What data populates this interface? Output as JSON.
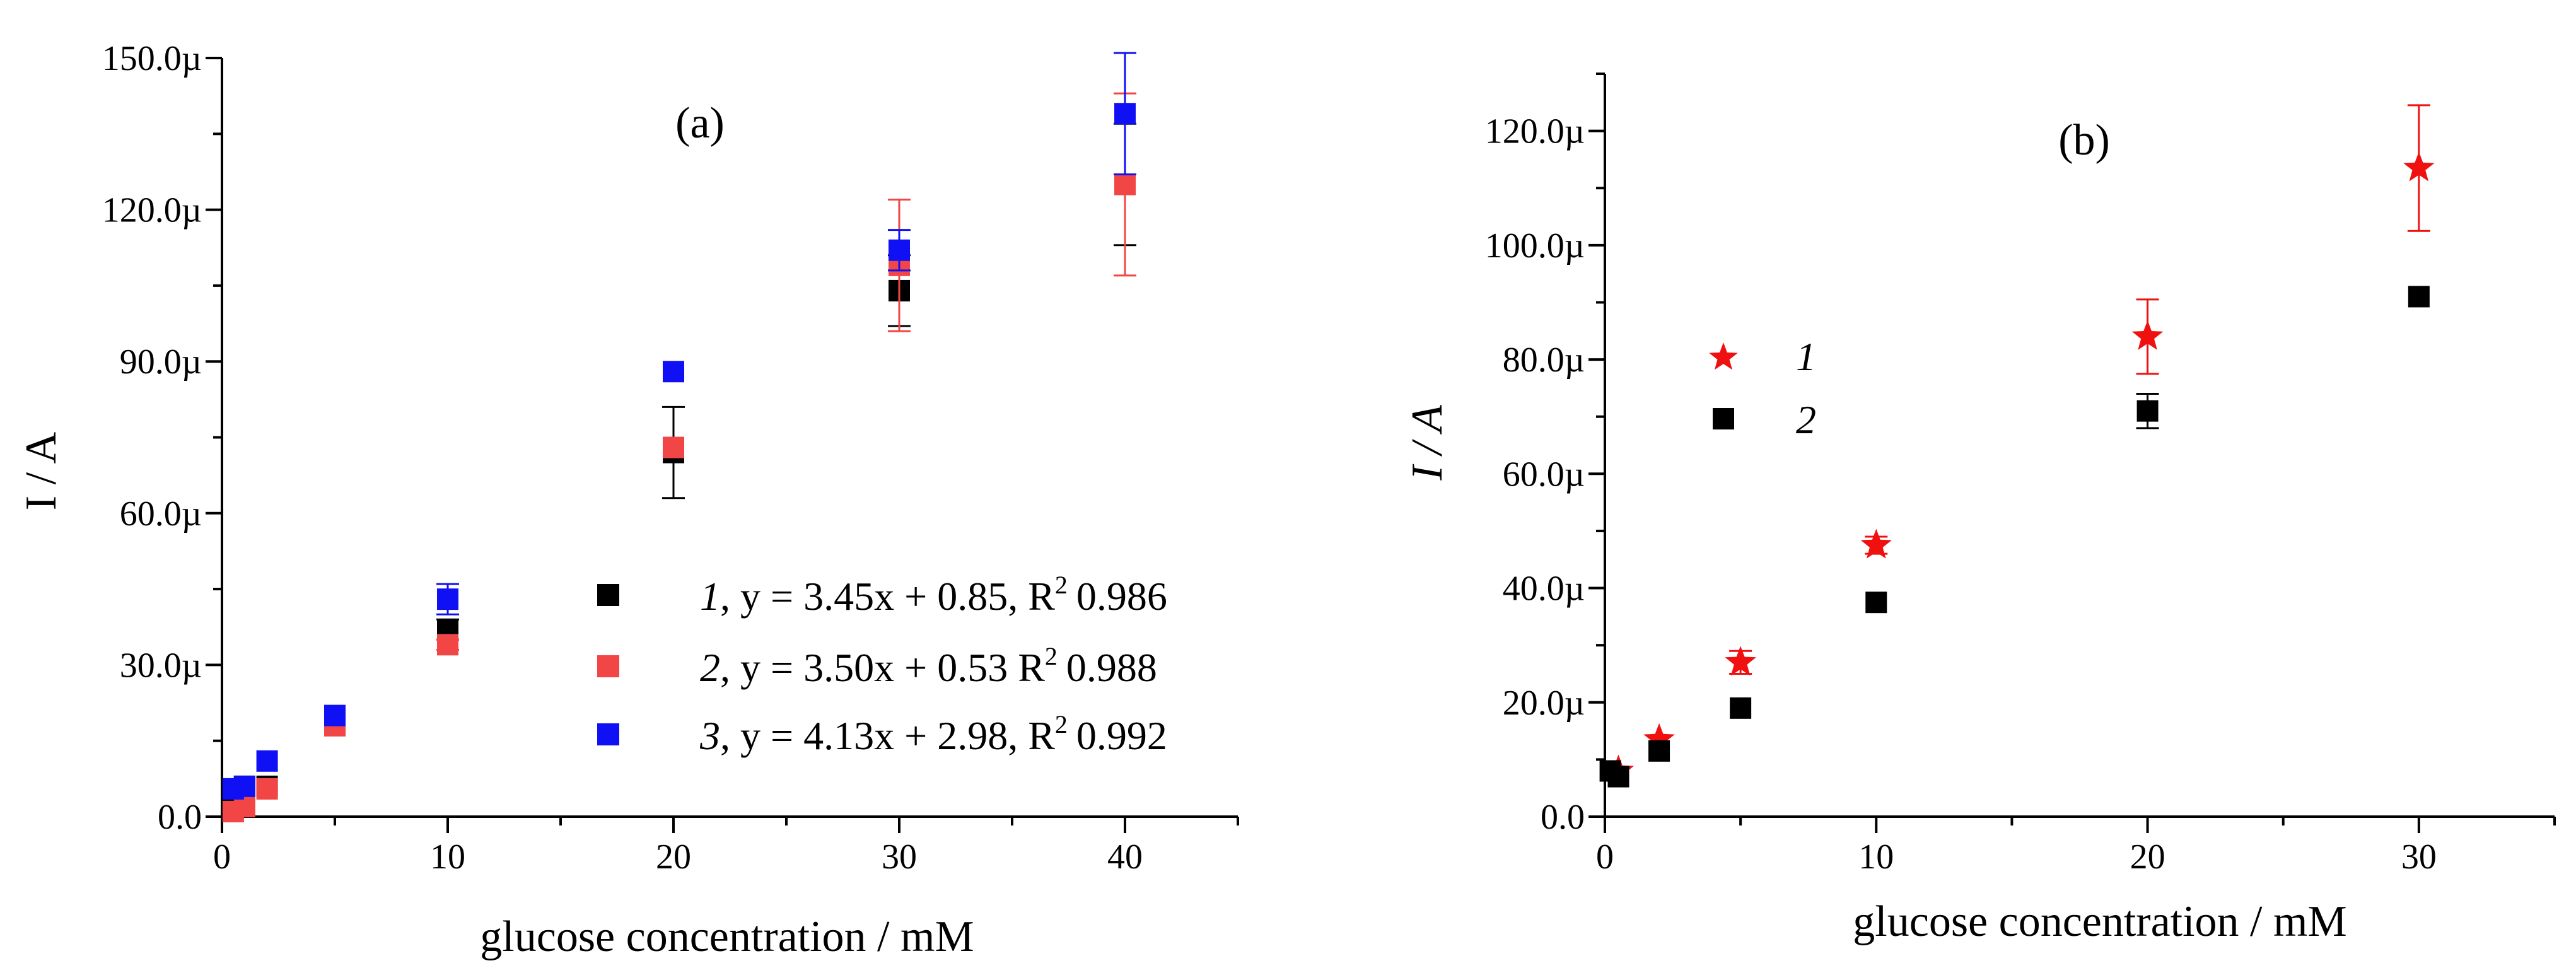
{
  "chart_data": [
    {
      "type": "scatter",
      "panel_label": "(a)",
      "xlabel": "glucose concentration / mM",
      "ylabel": "I / A",
      "xlim": [
        0,
        45
      ],
      "ylim": [
        0,
        150
      ],
      "x_major_ticks": [
        0,
        10,
        20,
        30,
        40
      ],
      "x_tick_labels": [
        "0",
        "10",
        "20",
        "30",
        "40"
      ],
      "y_major_ticks": [
        0,
        30,
        60,
        90,
        120,
        150
      ],
      "y_tick_labels": [
        "0.0",
        "30.0µ",
        "60.0µ",
        "90.0µ",
        "120.0µ",
        "150.0µ"
      ],
      "legend_position": "center-right",
      "series": [
        {
          "name": "1",
          "legend_label": ", y = 3.45x + 0.85, R",
          "legend_r2": "0.986",
          "color": "#000000",
          "marker": "square",
          "x": [
            0.5,
            1,
            2,
            5,
            10,
            20,
            30,
            40
          ],
          "y": [
            5,
            6,
            6,
            18,
            37,
            72,
            104,
            125
          ],
          "yerr": [
            0,
            0,
            0,
            0,
            2,
            9,
            7,
            12
          ]
        },
        {
          "name": "2",
          "legend_label": ", y = 3.50x + 0.53 R",
          "legend_r2": "0.988",
          "color": "#f24545",
          "marker": "square",
          "x": [
            0.5,
            1,
            2,
            5,
            10,
            20,
            30,
            40
          ],
          "y": [
            1,
            2,
            5.5,
            18,
            34,
            73,
            109,
            125
          ],
          "yerr": [
            0,
            0,
            0,
            0,
            1,
            0,
            13,
            18
          ]
        },
        {
          "name": "3",
          "legend_label": ", y = 4.13x + 2.98, R",
          "legend_r2": "0.992",
          "color": "#1010f5",
          "marker": "square",
          "x": [
            0.5,
            1,
            2,
            5,
            10,
            20,
            30,
            40
          ],
          "y": [
            5.5,
            6,
            11,
            20,
            43,
            88,
            112,
            139
          ],
          "yerr": [
            0,
            0,
            0,
            0,
            3,
            0,
            4,
            12
          ]
        }
      ]
    },
    {
      "type": "scatter",
      "panel_label": "(b)",
      "xlabel": "glucose concentration / mM",
      "ylabel": "I / A",
      "xlim": [
        0,
        35
      ],
      "ylim": [
        0,
        130
      ],
      "x_major_ticks": [
        0,
        10,
        20,
        30
      ],
      "x_tick_labels": [
        "0",
        "10",
        "20",
        "30"
      ],
      "y_major_ticks": [
        0,
        20,
        40,
        60,
        80,
        100,
        120
      ],
      "y_tick_labels": [
        "0.0",
        "20.0µ",
        "40.0µ",
        "60.0µ",
        "80.0µ",
        "100.0µ",
        "120.0µ"
      ],
      "legend_position": "upper-left",
      "series": [
        {
          "name": "1",
          "color": "#f01010",
          "marker": "star",
          "x": [
            0.5,
            2,
            5,
            10,
            20,
            30
          ],
          "y": [
            8,
            13.5,
            27,
            47.5,
            84,
            113.5
          ],
          "yerr": [
            0,
            0,
            2,
            1.5,
            6.5,
            11
          ]
        },
        {
          "name": "2",
          "color": "#000000",
          "marker": "square",
          "x": [
            0.2,
            0.5,
            2,
            5,
            10,
            20,
            30
          ],
          "y": [
            8,
            7,
            11.5,
            19,
            37.5,
            71,
            91
          ],
          "yerr": [
            0,
            0,
            0,
            0,
            0,
            3,
            0
          ]
        }
      ]
    }
  ]
}
